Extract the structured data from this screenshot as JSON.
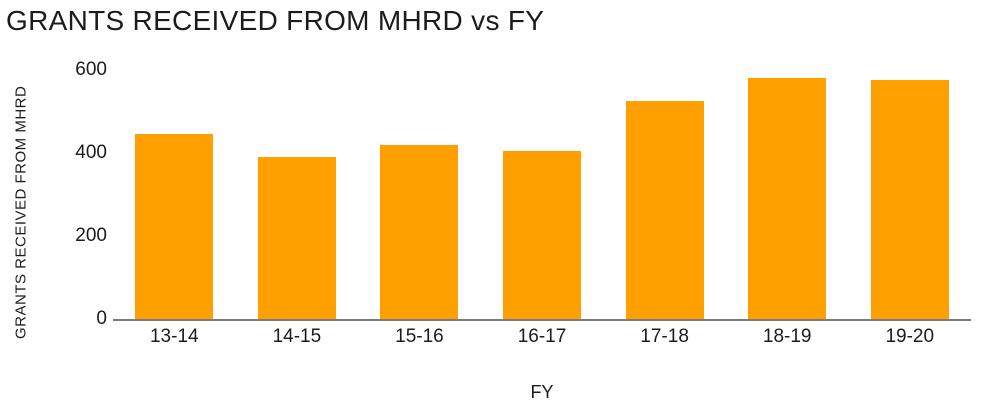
{
  "chart_data": {
    "type": "bar",
    "title": "GRANTS RECEIVED FROM MHRD vs FY",
    "xlabel": "FY",
    "ylabel": "GRANTS RECEIVED FROM MHRD",
    "categories": [
      "13-14",
      "14-15",
      "15-16",
      "16-17",
      "17-18",
      "18-19",
      "19-20"
    ],
    "values": [
      445,
      390,
      420,
      405,
      525,
      580,
      577
    ],
    "yticks": [
      0,
      200,
      400,
      600
    ],
    "ylim": [
      0,
      600
    ],
    "grid": false,
    "legend": false,
    "bar_color": "#FFA000",
    "axis_line_color": "#7A7A7A",
    "text_color": "#1C1C1C",
    "background_color": "#FFFFFF"
  }
}
